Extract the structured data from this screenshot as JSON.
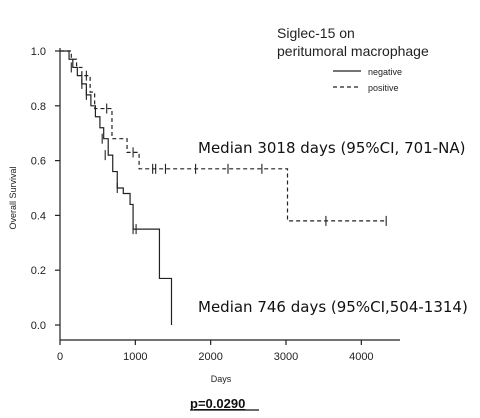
{
  "chart_data": {
    "type": "line",
    "title": "",
    "xlabel": "Days",
    "ylabel": "Overall Survival",
    "xlim": [
      0,
      4500
    ],
    "ylim": [
      0,
      1.0
    ],
    "x_ticks": [
      "0",
      "1000",
      "2000",
      "3000",
      "4000"
    ],
    "y_ticks": [
      "0.0",
      "0.2",
      "0.4",
      "0.6",
      "0.8",
      "1.0"
    ],
    "legend": {
      "title_line1": "Siglec-15 on",
      "title_line2": "peritumoral macrophage",
      "placement": "top-right"
    },
    "series": [
      {
        "name": "negative",
        "style": "solid",
        "steps": [
          [
            0,
            1.0
          ],
          [
            120,
            0.97
          ],
          [
            170,
            0.94
          ],
          [
            230,
            0.91
          ],
          [
            290,
            0.88
          ],
          [
            350,
            0.84
          ],
          [
            410,
            0.8
          ],
          [
            470,
            0.76
          ],
          [
            530,
            0.72
          ],
          [
            580,
            0.68
          ],
          [
            640,
            0.62
          ],
          [
            700,
            0.56
          ],
          [
            760,
            0.5
          ],
          [
            840,
            0.48
          ],
          [
            930,
            0.44
          ],
          [
            970,
            0.35
          ],
          [
            1320,
            0.17
          ],
          [
            1480,
            0.0
          ]
        ],
        "end_x": 1480,
        "censored": [
          [
            150,
            0.94
          ],
          [
            290,
            0.88
          ],
          [
            350,
            0.84
          ],
          [
            560,
            0.68
          ],
          [
            600,
            0.62
          ],
          [
            760,
            0.5
          ],
          [
            970,
            0.35
          ],
          [
            1010,
            0.35
          ]
        ]
      },
      {
        "name": "positive",
        "style": "dashed",
        "steps": [
          [
            0,
            1.0
          ],
          [
            150,
            0.97
          ],
          [
            220,
            0.94
          ],
          [
            290,
            0.91
          ],
          [
            400,
            0.85
          ],
          [
            460,
            0.79
          ],
          [
            690,
            0.68
          ],
          [
            890,
            0.63
          ],
          [
            1050,
            0.57
          ],
          [
            3020,
            0.38
          ]
        ],
        "end_x": 4330,
        "censored": [
          [
            350,
            0.91
          ],
          [
            620,
            0.79
          ],
          [
            970,
            0.63
          ],
          [
            1230,
            0.57
          ],
          [
            1270,
            0.57
          ],
          [
            1400,
            0.57
          ],
          [
            1800,
            0.57
          ],
          [
            2230,
            0.57
          ],
          [
            2680,
            0.57
          ],
          [
            3530,
            0.38
          ],
          [
            4330,
            0.38
          ]
        ]
      }
    ],
    "annotations": [
      {
        "text": "Median 3018 days (95%CI, 701-NA)"
      },
      {
        "text": "Median 746 days (95%CI,504-1314)"
      }
    ],
    "p_value": "p=0.0290"
  }
}
